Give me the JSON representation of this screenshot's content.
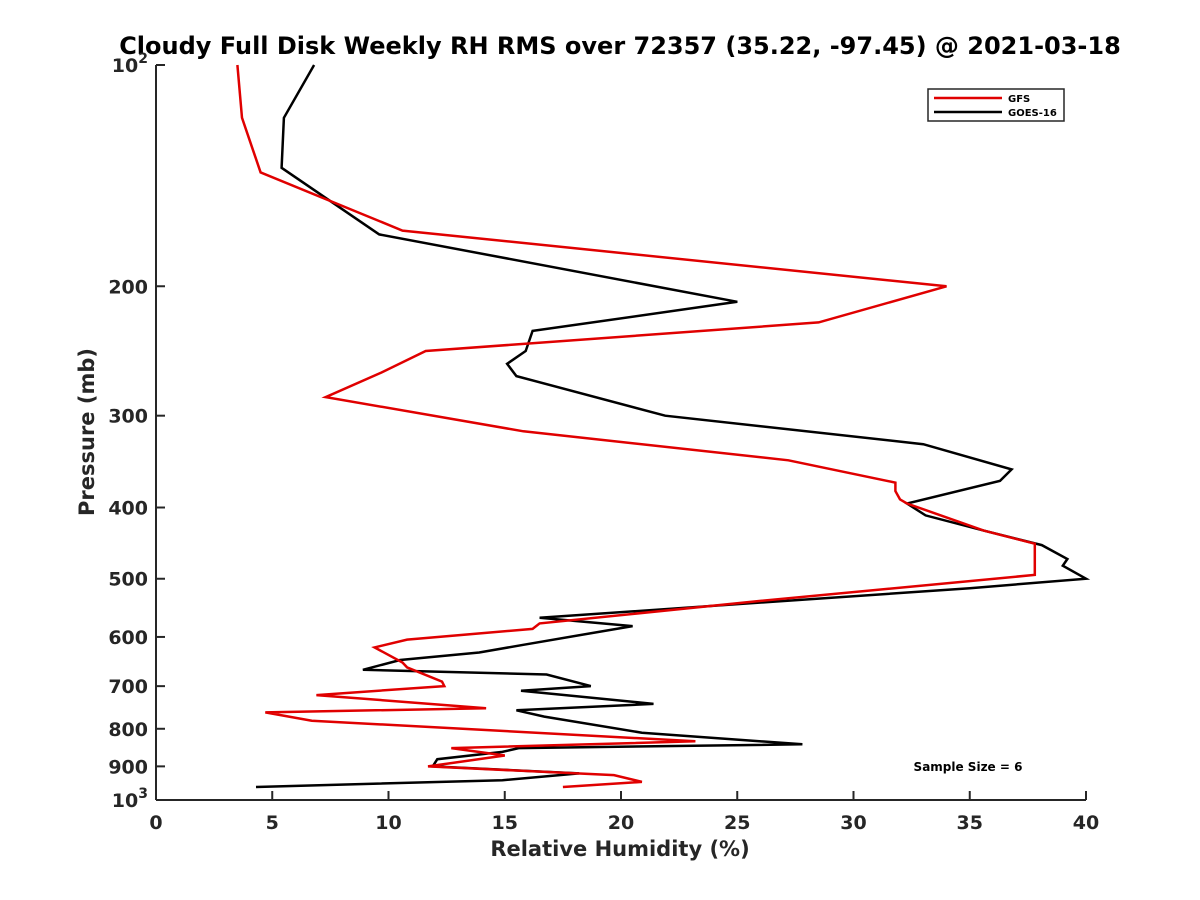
{
  "chart_data": {
    "type": "line",
    "title": "Cloudy Full Disk Weekly RH RMS over 72357 (35.22, -97.45) @ 2021-03-18",
    "xlabel": "Relative Humidity (%)",
    "ylabel": "Pressure (mb)",
    "xlim": [
      0,
      40
    ],
    "ylim": [
      100,
      1000
    ],
    "y_scale": "log",
    "y_reversed": true,
    "x_ticks": [
      0,
      5,
      10,
      15,
      20,
      25,
      30,
      35,
      40
    ],
    "y_ticks": [
      {
        "value": 100,
        "label": "10",
        "sup": "2"
      },
      {
        "value": 200,
        "label": "200"
      },
      {
        "value": 300,
        "label": "300"
      },
      {
        "value": 400,
        "label": "400"
      },
      {
        "value": 500,
        "label": "500"
      },
      {
        "value": 600,
        "label": "600"
      },
      {
        "value": 700,
        "label": "700"
      },
      {
        "value": 800,
        "label": "800"
      },
      {
        "value": 900,
        "label": "900"
      },
      {
        "value": 1000,
        "label": "10",
        "sup": "3"
      }
    ],
    "grid": false,
    "legend": "top-right",
    "annotation": "Sample Size = 6",
    "series": [
      {
        "name": "GFS",
        "color": "#e00000",
        "x": [
          3.5,
          3.7,
          4.5,
          10.6,
          34,
          28.5,
          11.6,
          9.7,
          7.3,
          15.8,
          27.2,
          31.8,
          31.8,
          32,
          32.3,
          35.6,
          37.8,
          37.8,
          37.8,
          26,
          16.5,
          16.2,
          10.8,
          9.4,
          10.6,
          10.8,
          12.3,
          12.4,
          6.9,
          14.2,
          4.7,
          6.7,
          23.2,
          12.7,
          15,
          11.7,
          19.7,
          20.9,
          17.5
        ],
        "y": [
          100,
          118,
          140,
          168,
          200,
          224,
          245,
          262,
          283,
          315,
          345,
          370,
          380,
          390,
          395,
          430,
          448,
          470,
          494,
          536,
          575,
          585,
          605,
          620,
          650,
          660,
          690,
          700,
          720,
          750,
          760,
          780,
          832,
          850,
          870,
          900,
          925,
          945,
          960
        ]
      },
      {
        "name": "GOES-16",
        "color": "#000000",
        "x": [
          6.8,
          5.5,
          5.4,
          9.6,
          25,
          16.2,
          15.9,
          15.1,
          15.5,
          21.9,
          33,
          36.8,
          36.3,
          32.3,
          33.1,
          35.6,
          38.1,
          39.2,
          39,
          40,
          35,
          16.5,
          20.5,
          15.8,
          13.9,
          10.5,
          8.9,
          16.8,
          18.7,
          15.7,
          21.4,
          15.5,
          16.7,
          20.9,
          27.8,
          15.6,
          14.9,
          12.1,
          11.9,
          18.2,
          14.9,
          4.3
        ],
        "y": [
          100,
          118,
          138,
          170,
          210,
          230,
          245,
          255,
          265,
          300,
          328,
          355,
          368,
          395,
          410,
          430,
          450,
          470,
          480,
          500,
          515,
          565,
          580,
          615,
          630,
          645,
          665,
          675,
          700,
          710,
          740,
          755,
          770,
          810,
          840,
          850,
          860,
          880,
          900,
          920,
          940,
          960
        ]
      }
    ]
  }
}
